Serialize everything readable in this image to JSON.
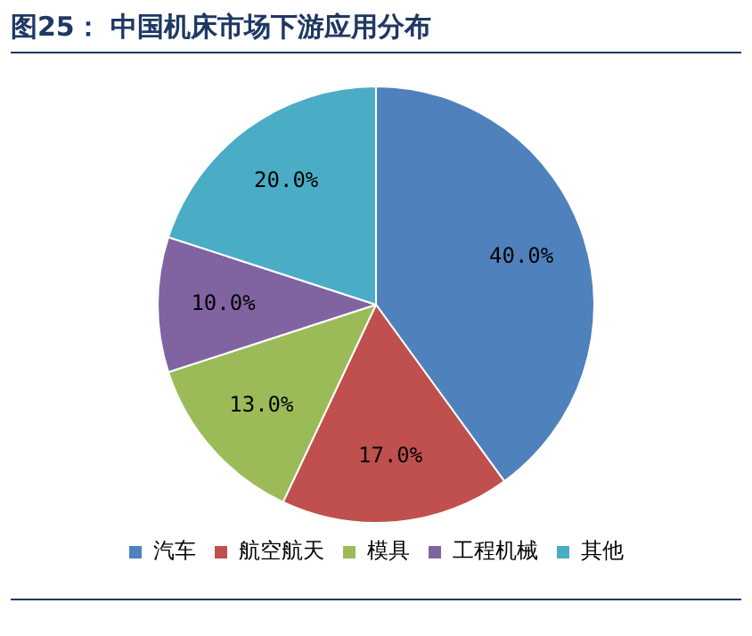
{
  "chart_data": {
    "type": "pie",
    "title": "图25： 中国机床市场下游应用分布",
    "categories": [
      "汽车",
      "航空航天",
      "模具",
      "工程机械",
      "其他"
    ],
    "values": [
      40,
      17,
      13,
      10,
      20
    ],
    "value_labels": [
      "40.0%",
      "17.0%",
      "13.0%",
      "10.0%",
      "20.0%"
    ],
    "colors": [
      "#4f81bd",
      "#c0504d",
      "#9bbb59",
      "#8064a2",
      "#4bacc6"
    ],
    "legend": "bottom"
  }
}
